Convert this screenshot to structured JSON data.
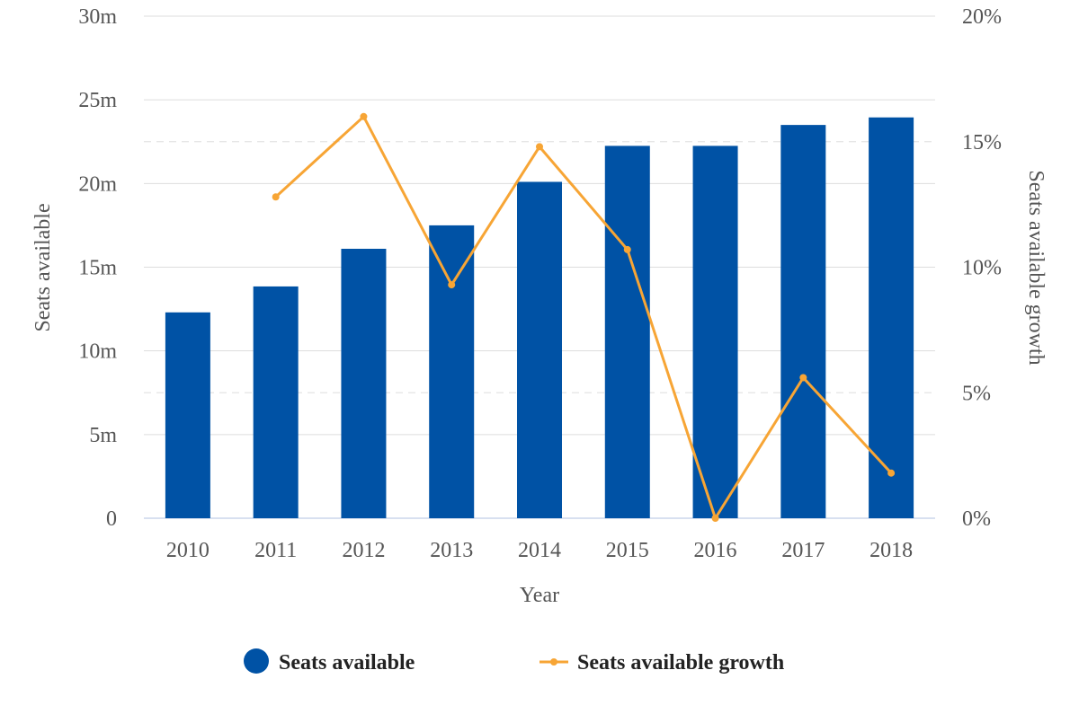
{
  "chart_data": {
    "type": "bar",
    "categories": [
      "2010",
      "2011",
      "2012",
      "2013",
      "2014",
      "2015",
      "2016",
      "2017",
      "2018"
    ],
    "series": [
      {
        "name": "Seats available",
        "type": "bar",
        "axis": "left",
        "values": [
          12.3,
          13.85,
          16.1,
          17.5,
          20.1,
          22.25,
          22.25,
          23.5,
          23.95
        ]
      },
      {
        "name": "Seats available growth",
        "type": "line",
        "axis": "right",
        "values": [
          null,
          12.8,
          16.0,
          9.3,
          14.8,
          10.7,
          0.0,
          5.6,
          1.8
        ]
      }
    ],
    "xlabel": "Year",
    "ylabel": "Seats available",
    "y2label": "Seats available growth",
    "ylim": [
      0,
      30
    ],
    "y2lim": [
      0,
      20
    ],
    "yticks": [
      "0",
      "5m",
      "10m",
      "15m",
      "20m",
      "25m",
      "30m"
    ],
    "y2ticks": [
      "0%",
      "5%",
      "10%",
      "15%",
      "20%"
    ],
    "grid": true,
    "legend_position": "bottom",
    "colors": {
      "bar": "#0052A5",
      "line": "#F7A535",
      "grid": "#dddddd",
      "axis": "#ccd6eb"
    }
  }
}
